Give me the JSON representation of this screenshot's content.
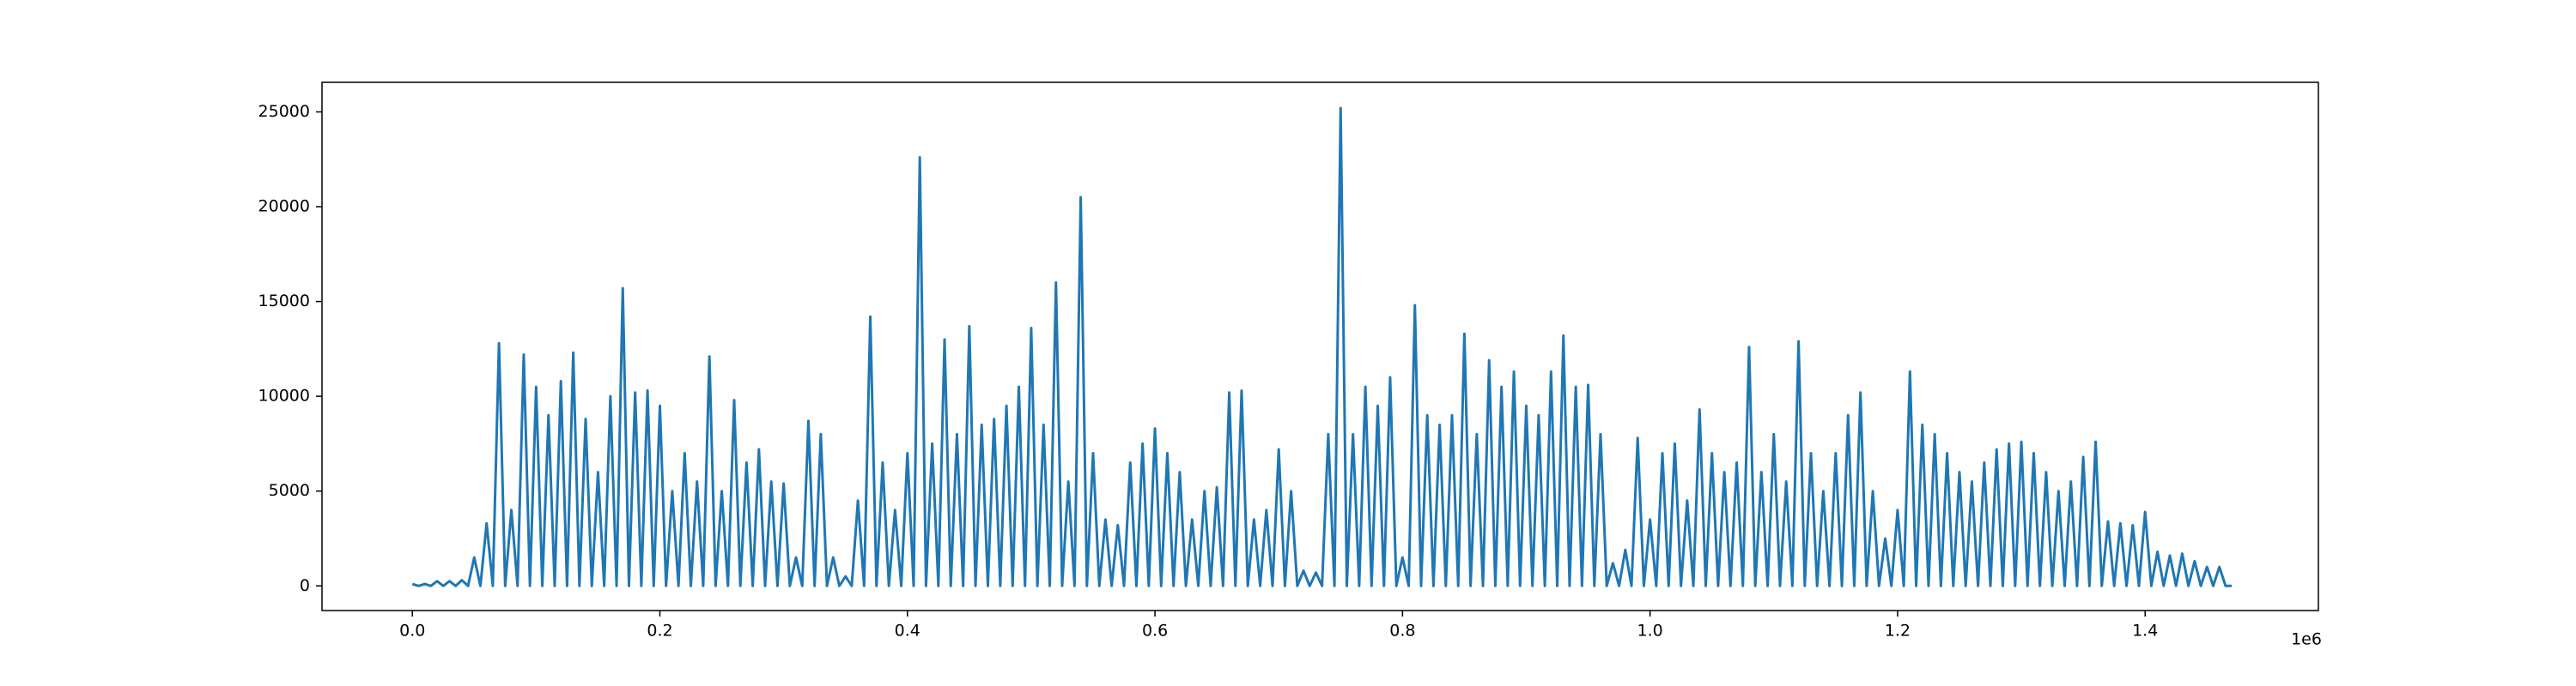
{
  "chart_data": {
    "type": "line",
    "color": "#1f77b4",
    "x": [
      0,
      5000,
      10000,
      15000,
      20000,
      25000,
      30000,
      35000,
      40000,
      45000,
      50000,
      55000,
      60000,
      65000,
      70000,
      75000,
      80000,
      85000,
      90000,
      95000,
      100000,
      105000,
      110000,
      115000,
      120000,
      125000,
      130000,
      135000,
      140000,
      145000,
      150000,
      155000,
      160000,
      165000,
      170000,
      175000,
      180000,
      185000,
      190000,
      195000,
      200000,
      205000,
      210000,
      215000,
      220000,
      225000,
      230000,
      235000,
      240000,
      245000,
      250000,
      255000,
      260000,
      265000,
      270000,
      275000,
      280000,
      285000,
      290000,
      295000,
      300000,
      305000,
      310000,
      315000,
      320000,
      325000,
      330000,
      335000,
      340000,
      345000,
      350000,
      355000,
      360000,
      365000,
      370000,
      375000,
      380000,
      385000,
      390000,
      395000,
      400000,
      405000,
      410000,
      415000,
      420000,
      425000,
      430000,
      435000,
      440000,
      445000,
      450000,
      455000,
      460000,
      465000,
      470000,
      475000,
      480000,
      485000,
      490000,
      495000,
      500000,
      505000,
      510000,
      515000,
      520000,
      525000,
      530000,
      535000,
      540000,
      545000,
      550000,
      555000,
      560000,
      565000,
      570000,
      575000,
      580000,
      585000,
      590000,
      595000,
      600000,
      605000,
      610000,
      615000,
      620000,
      625000,
      630000,
      635000,
      640000,
      645000,
      650000,
      655000,
      660000,
      665000,
      670000,
      675000,
      680000,
      685000,
      690000,
      695000,
      700000,
      705000,
      710000,
      715000,
      720000,
      725000,
      730000,
      735000,
      740000,
      745000,
      750000,
      755000,
      760000,
      765000,
      770000,
      775000,
      780000,
      785000,
      790000,
      795000,
      800000,
      805000,
      810000,
      815000,
      820000,
      825000,
      830000,
      835000,
      840000,
      845000,
      850000,
      855000,
      860000,
      865000,
      870000,
      875000,
      880000,
      885000,
      890000,
      895000,
      900000,
      905000,
      910000,
      915000,
      920000,
      925000,
      930000,
      935000,
      940000,
      945000,
      950000,
      955000,
      960000,
      965000,
      970000,
      975000,
      980000,
      985000,
      990000,
      995000,
      1000000,
      1005000,
      1010000,
      1015000,
      1020000,
      1025000,
      1030000,
      1035000,
      1040000,
      1045000,
      1050000,
      1055000,
      1060000,
      1065000,
      1070000,
      1075000,
      1080000,
      1085000,
      1090000,
      1095000,
      1100000,
      1105000,
      1110000,
      1115000,
      1120000,
      1125000,
      1130000,
      1135000,
      1140000,
      1145000,
      1150000,
      1155000,
      1160000,
      1165000,
      1170000,
      1175000,
      1180000,
      1185000,
      1190000,
      1195000,
      1200000,
      1205000,
      1210000,
      1215000,
      1220000,
      1225000,
      1230000,
      1235000,
      1240000,
      1245000,
      1250000,
      1255000,
      1260000,
      1265000,
      1270000,
      1275000,
      1280000,
      1285000,
      1290000,
      1295000,
      1300000,
      1305000,
      1310000,
      1315000,
      1320000,
      1325000,
      1330000,
      1335000,
      1340000,
      1345000,
      1350000,
      1355000,
      1360000,
      1365000,
      1370000,
      1375000,
      1380000,
      1385000,
      1390000,
      1395000,
      1400000,
      1405000,
      1410000,
      1415000,
      1420000,
      1425000,
      1430000,
      1435000,
      1440000,
      1445000,
      1450000,
      1455000,
      1460000,
      1465000,
      1470000
    ],
    "values": [
      100,
      0,
      100,
      0,
      250,
      0,
      250,
      0,
      300,
      0,
      1500,
      0,
      3300,
      0,
      12800,
      0,
      4000,
      0,
      12200,
      0,
      10500,
      0,
      9000,
      0,
      10800,
      0,
      12300,
      0,
      8800,
      0,
      6000,
      0,
      10000,
      0,
      15700,
      0,
      10200,
      0,
      10300,
      0,
      9500,
      0,
      5000,
      0,
      7000,
      0,
      5500,
      0,
      12100,
      0,
      5000,
      0,
      9800,
      0,
      6500,
      0,
      7200,
      0,
      5500,
      0,
      5400,
      0,
      1500,
      0,
      8700,
      0,
      8000,
      0,
      1500,
      0,
      500,
      0,
      4500,
      0,
      14200,
      0,
      6500,
      0,
      4000,
      0,
      7000,
      0,
      22600,
      0,
      7500,
      0,
      13000,
      0,
      8000,
      0,
      13700,
      0,
      8500,
      0,
      8800,
      0,
      9500,
      0,
      10500,
      0,
      13600,
      0,
      8500,
      0,
      16000,
      0,
      5500,
      0,
      20500,
      0,
      7000,
      0,
      3500,
      0,
      3200,
      0,
      6500,
      0,
      7500,
      0,
      8300,
      0,
      7000,
      0,
      6000,
      0,
      3500,
      0,
      5000,
      0,
      5200,
      0,
      10200,
      0,
      10300,
      0,
      3500,
      0,
      4000,
      0,
      7200,
      0,
      5000,
      0,
      800,
      0,
      700,
      0,
      8000,
      0,
      25200,
      0,
      8000,
      0,
      10500,
      0,
      9500,
      0,
      11000,
      0,
      1500,
      0,
      14800,
      0,
      9000,
      0,
      8500,
      0,
      9000,
      0,
      13300,
      0,
      8000,
      0,
      11900,
      0,
      10500,
      0,
      11300,
      0,
      9500,
      0,
      9000,
      0,
      11300,
      0,
      13200,
      0,
      10500,
      0,
      10600,
      0,
      8000,
      0,
      1200,
      0,
      1900,
      0,
      7800,
      0,
      3500,
      0,
      7000,
      0,
      7500,
      0,
      4500,
      0,
      9300,
      0,
      7000,
      0,
      6000,
      0,
      6500,
      0,
      12600,
      0,
      6000,
      0,
      8000,
      0,
      5500,
      0,
      12900,
      0,
      7000,
      0,
      5000,
      0,
      7000,
      0,
      9000,
      0,
      10200,
      0,
      5000,
      0,
      2500,
      0,
      4000,
      0,
      11300,
      0,
      8500,
      0,
      8000,
      0,
      7000,
      0,
      6000,
      0,
      5500,
      0,
      6500,
      0,
      7200,
      0,
      7500,
      0,
      7600,
      0,
      7000,
      0,
      6000,
      0,
      5000,
      0,
      5500,
      0,
      6800,
      0,
      7600,
      0,
      3400,
      0,
      3300,
      0,
      3200,
      0,
      3900,
      0,
      1800,
      0,
      1600,
      0,
      1700,
      0,
      1300,
      0,
      1000,
      0,
      1000,
      0,
      0
    ],
    "xlim": [
      -73000,
      1540000
    ],
    "xticks": [
      {
        "value": 0,
        "label": "0.0"
      },
      {
        "value": 200000,
        "label": "0.2"
      },
      {
        "value": 400000,
        "label": "0.4"
      },
      {
        "value": 600000,
        "label": "0.6"
      },
      {
        "value": 800000,
        "label": "0.8"
      },
      {
        "value": 1000000,
        "label": "1.0"
      },
      {
        "value": 1200000,
        "label": "1.2"
      },
      {
        "value": 1400000,
        "label": "1.4"
      }
    ],
    "x_offset_text": "1e6",
    "ylim": [
      -1300,
      26560
    ],
    "yticks": [
      0,
      5000,
      10000,
      15000,
      20000,
      25000
    ]
  }
}
